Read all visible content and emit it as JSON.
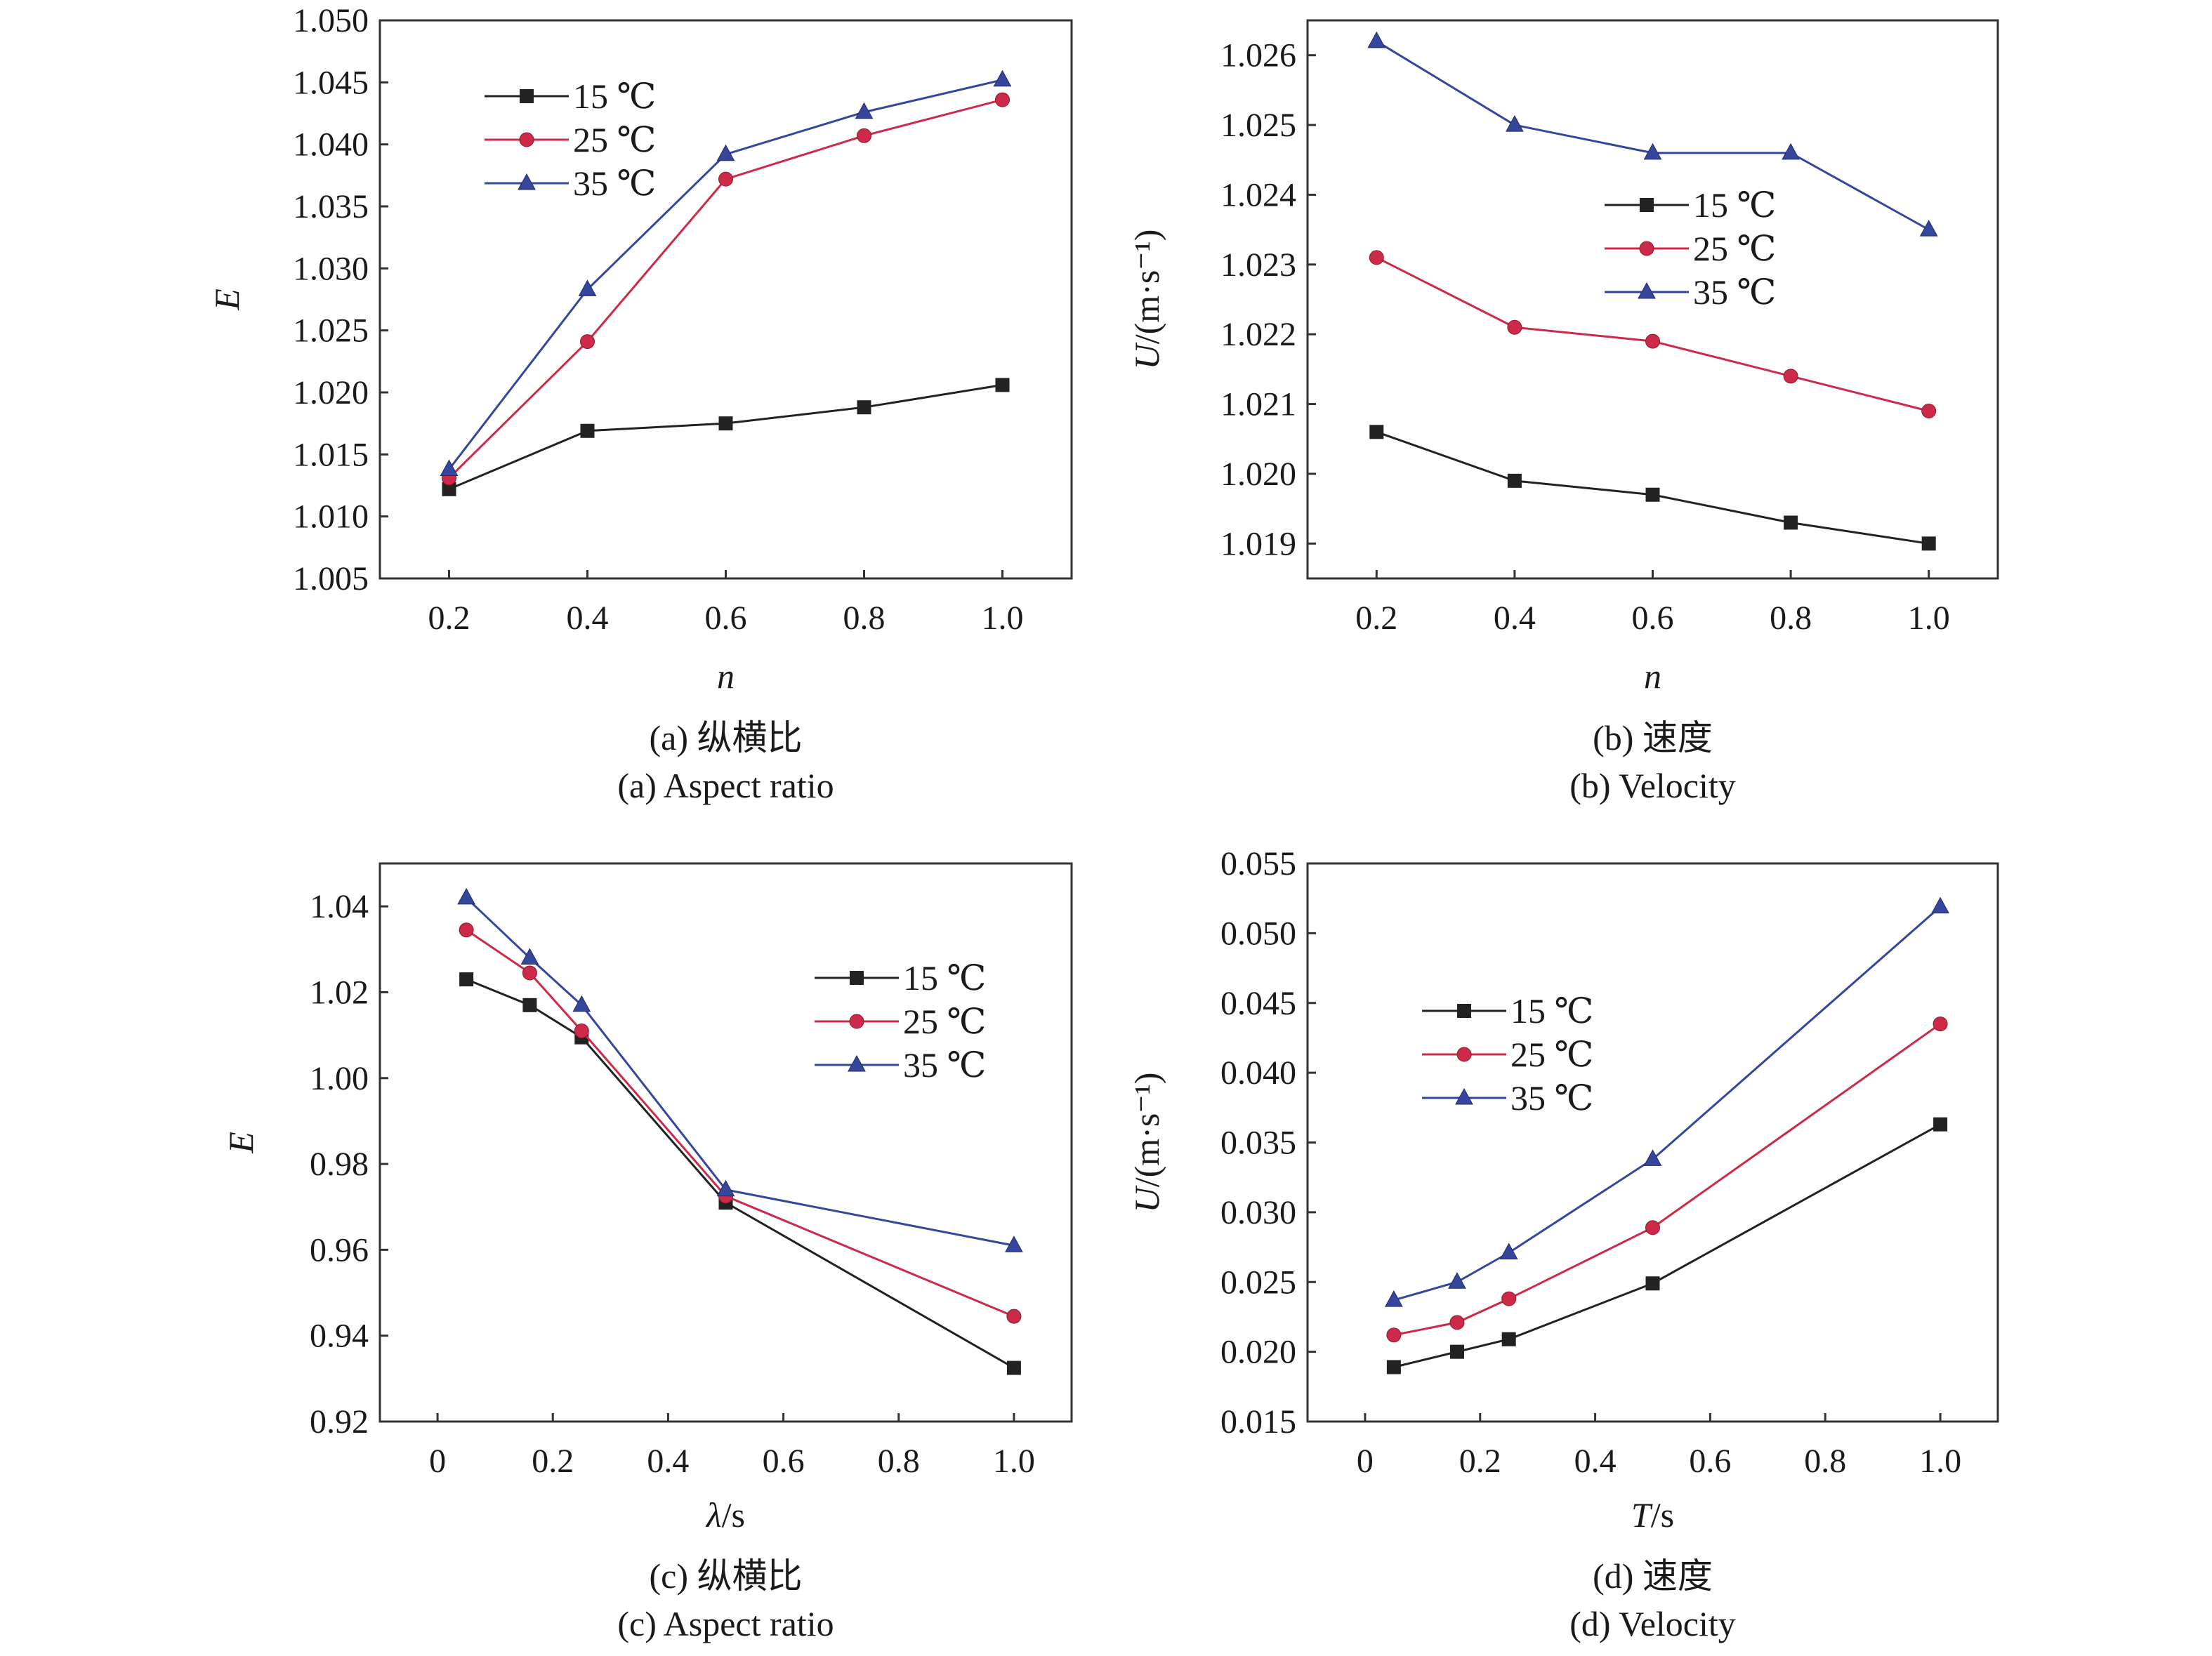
{
  "colors": {
    "15C": "#222222",
    "25C": "#cc2a48",
    "35C": "#35479c"
  },
  "legend_labels": [
    "15 ℃",
    "25 ℃",
    "35 ℃"
  ],
  "chart_data": [
    {
      "id": "a",
      "type": "line",
      "caption_zh": "(a) 纵横比",
      "caption_en": "(a) Aspect ratio",
      "xlabel": "n",
      "ylabel": "E",
      "xlim": [
        0.1,
        1.1
      ],
      "ylim": [
        1.005,
        1.05
      ],
      "xticks": [
        "0.2",
        "0.4",
        "0.6",
        "0.8",
        "1.0"
      ],
      "yticks": [
        "1.005",
        "1.010",
        "1.015",
        "1.020",
        "1.025",
        "1.030",
        "1.035",
        "1.040",
        "1.045",
        "1.050"
      ],
      "x": [
        0.2,
        0.4,
        0.6,
        0.8,
        1.0
      ],
      "legend_position": "top-left",
      "series": [
        {
          "name": "15 ℃",
          "marker": "square",
          "values": [
            1.0122,
            1.0169,
            1.0175,
            1.0188,
            1.0206
          ]
        },
        {
          "name": "25 ℃",
          "marker": "circle",
          "values": [
            1.0131,
            1.0241,
            1.0372,
            1.0407,
            1.0436
          ]
        },
        {
          "name": "35 ℃",
          "marker": "triangle",
          "values": [
            1.0138,
            1.0283,
            1.0392,
            1.0426,
            1.0452
          ]
        }
      ]
    },
    {
      "id": "b",
      "type": "line",
      "caption_zh": "(b) 速度",
      "caption_en": "(b) Velocity",
      "xlabel": "n",
      "ylabel": "U/(m·s⁻¹)",
      "xlim": [
        0.1,
        1.1
      ],
      "ylim": [
        1.0185,
        1.0265
      ],
      "xticks": [
        "0.2",
        "0.4",
        "0.6",
        "0.8",
        "1.0"
      ],
      "yticks": [
        "1.019",
        "1.020",
        "1.021",
        "1.022",
        "1.023",
        "1.024",
        "1.025",
        "1.026"
      ],
      "x": [
        0.2,
        0.4,
        0.6,
        0.8,
        1.0
      ],
      "legend_position": "center-right",
      "series": [
        {
          "name": "15 ℃",
          "marker": "square",
          "values": [
            1.0206,
            1.0199,
            1.0197,
            1.0193,
            1.019
          ]
        },
        {
          "name": "25 ℃",
          "marker": "circle",
          "values": [
            1.0231,
            1.0221,
            1.0219,
            1.0214,
            1.0209
          ]
        },
        {
          "name": "35 ℃",
          "marker": "triangle",
          "values": [
            1.0262,
            1.025,
            1.0246,
            1.0246,
            1.0235
          ]
        }
      ]
    },
    {
      "id": "c",
      "type": "line",
      "caption_zh": "(c) 纵横比",
      "caption_en": "(c) Aspect ratio",
      "xlabel": "λ/s",
      "ylabel": "E",
      "xlim": [
        -0.1,
        1.1
      ],
      "ylim": [
        0.92,
        1.05
      ],
      "xticks": [
        "0",
        "0.2",
        "0.4",
        "0.6",
        "0.8",
        "1.0"
      ],
      "yticks": [
        "0.92",
        "0.94",
        "0.96",
        "0.98",
        "1.00",
        "1.02",
        "1.04"
      ],
      "x": [
        0.05,
        0.16,
        0.25,
        0.5,
        1.0
      ],
      "legend_position": "top-right",
      "series": [
        {
          "name": "15 ℃",
          "marker": "square",
          "values": [
            1.023,
            1.017,
            1.0095,
            0.971,
            0.9325
          ]
        },
        {
          "name": "25 ℃",
          "marker": "circle",
          "values": [
            1.0345,
            1.0245,
            1.011,
            0.9725,
            0.9445
          ]
        },
        {
          "name": "35 ℃",
          "marker": "triangle",
          "values": [
            1.042,
            1.028,
            1.017,
            0.974,
            0.961
          ]
        }
      ]
    },
    {
      "id": "d",
      "type": "line",
      "caption_zh": "(d) 速度",
      "caption_en": "(d) Velocity",
      "xlabel": "T/s",
      "ylabel": "U/(m·s⁻¹)",
      "xlim": [
        -0.1,
        1.1
      ],
      "ylim": [
        0.015,
        0.055
      ],
      "xticks": [
        "0",
        "0.2",
        "0.4",
        "0.6",
        "0.8",
        "1.0"
      ],
      "yticks": [
        "0.015",
        "0.020",
        "0.025",
        "0.030",
        "0.035",
        "0.040",
        "0.045",
        "0.050",
        "0.055"
      ],
      "x": [
        0.05,
        0.16,
        0.25,
        0.5,
        1.0
      ],
      "legend_position": "top-left",
      "series": [
        {
          "name": "15 ℃",
          "marker": "square",
          "values": [
            0.0189,
            0.02,
            0.0209,
            0.0249,
            0.0363
          ]
        },
        {
          "name": "25 ℃",
          "marker": "circle",
          "values": [
            0.0212,
            0.0221,
            0.0238,
            0.0289,
            0.0435
          ]
        },
        {
          "name": "35 ℃",
          "marker": "triangle",
          "values": [
            0.0237,
            0.025,
            0.0271,
            0.0338,
            0.0519
          ]
        }
      ]
    }
  ]
}
